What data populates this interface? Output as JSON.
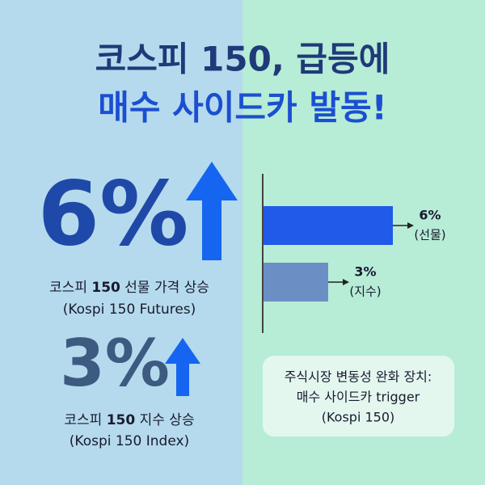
{
  "headline": {
    "line1": "코스피 150, 급등에",
    "line2": "매수 사이드카 발동!"
  },
  "stats": [
    {
      "big": "6%",
      "label_pre": "코스피",
      "label_bold": "150",
      "label_post": "선물 가격 상승",
      "note": "(Kospi 150 Futures)"
    },
    {
      "big": "3%",
      "label_pre": "코스피",
      "label_bold": "150",
      "label_post": "지수 상승",
      "note": "(Kospi 150 Index)"
    }
  ],
  "chart_data": {
    "type": "bar",
    "orientation": "horizontal",
    "categories": [
      "(선물)",
      "(지수)"
    ],
    "values": [
      6,
      3
    ],
    "value_labels": [
      "6%",
      "3%"
    ],
    "colors": [
      "#1f5ae8",
      "#6b8fc5"
    ]
  },
  "info_box": {
    "line1": "주식시장 변동성 완화 장치:",
    "line2": "매수 사이드카 trigger",
    "line3": "(Kospi 150)"
  }
}
